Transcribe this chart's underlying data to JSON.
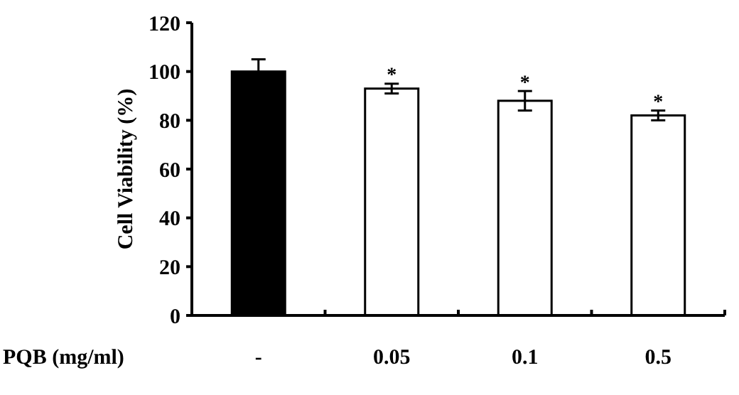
{
  "chart_data": {
    "type": "bar",
    "xlabel": "PQB (mg/ml)",
    "ylabel": "Cell Viability (%)",
    "categories": [
      "-",
      "0.05",
      "0.1",
      "0.5"
    ],
    "values": [
      100,
      93,
      88,
      82
    ],
    "errors": [
      5,
      2,
      4,
      2
    ],
    "colors": [
      "#000000",
      "#ffffff",
      "#ffffff",
      "#ffffff"
    ],
    "ylim": [
      0,
      120
    ],
    "yticks": [
      0,
      20,
      40,
      60,
      80,
      100,
      120
    ],
    "grid": false,
    "annotations": [
      {
        "text": "*",
        "x": "0.05",
        "y": 96
      },
      {
        "text": "*",
        "x": "0.1",
        "y": 93
      },
      {
        "text": "*",
        "x": "0.5",
        "y": 85
      }
    ]
  }
}
